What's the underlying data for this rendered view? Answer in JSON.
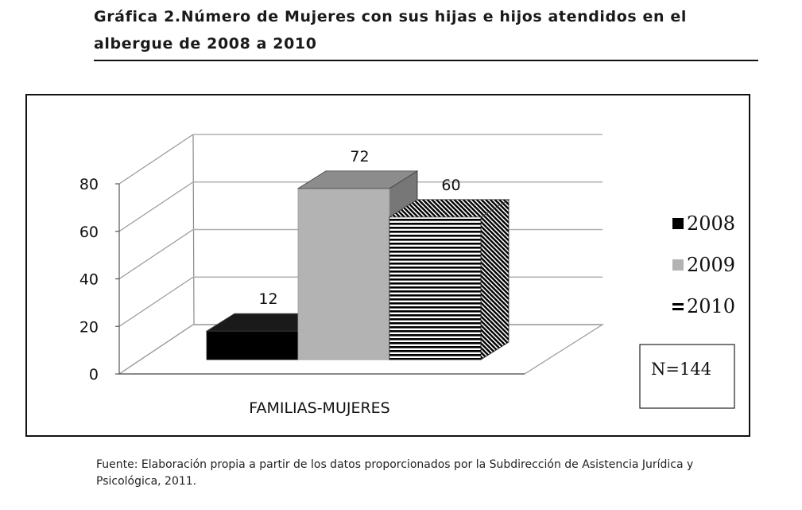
{
  "heading": {
    "line1": "Gráfica 2.Número de Mujeres con sus hijas e hijos atendidos en el",
    "line2": "albergue de 2008 a 2010"
  },
  "footer": {
    "line1": "Fuente: Elaboración propia a partir de los datos proporcionados por la Subdirección de Asistencia Jurídica y",
    "line2": "Psicológica, 2011."
  },
  "chart_data": {
    "type": "bar",
    "title": "",
    "xlabel": "",
    "ylabel": "",
    "categories": [
      "FAMILIAS-MUJERES"
    ],
    "series": [
      {
        "name": "2008",
        "values": [
          12
        ],
        "color": "#000000",
        "pattern": "solid"
      },
      {
        "name": "2009",
        "values": [
          72
        ],
        "color": "#b3b3b3",
        "pattern": "solid"
      },
      {
        "name": "2010",
        "values": [
          60
        ],
        "color": "#000000",
        "pattern": "horizontal-stripes"
      }
    ],
    "data_labels": [
      "12",
      "72",
      "60"
    ],
    "yticks": [
      "0",
      "20",
      "40",
      "60",
      "80"
    ],
    "ylim": [
      0,
      80
    ],
    "grid": true,
    "legend": "right",
    "annotation": "N=144",
    "style": "3d"
  }
}
